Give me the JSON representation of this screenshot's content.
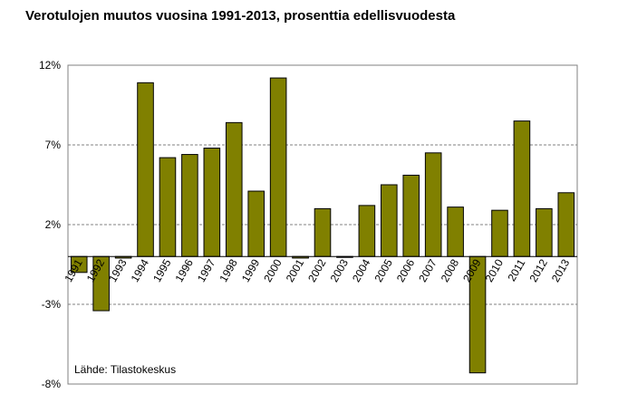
{
  "chart_data": {
    "type": "bar",
    "title": "Verotulojen muutos vuosina 1991-2013, prosenttia edellisvuodesta",
    "categories": [
      "1991",
      "1992",
      "1993",
      "1994",
      "1995",
      "1996",
      "1997",
      "1998",
      "1999",
      "2000",
      "2001",
      "2002",
      "2003",
      "2004",
      "2005",
      "2006",
      "2007",
      "2008",
      "2009",
      "2010",
      "2011",
      "2012",
      "2013"
    ],
    "values": [
      -1.0,
      -3.4,
      -0.1,
      10.9,
      6.2,
      6.4,
      6.8,
      8.4,
      4.1,
      11.2,
      -0.1,
      3.0,
      0.0,
      3.2,
      4.5,
      5.1,
      6.5,
      3.1,
      -7.3,
      2.9,
      8.5,
      3.0,
      4.0
    ],
    "ylim": [
      -8,
      12
    ],
    "yticks": [
      12,
      7,
      2,
      -3,
      -8
    ],
    "ytick_labels": [
      "12%",
      "7%",
      "2%",
      "-3%",
      "-8%"
    ],
    "grid": true,
    "bar_color": "#808000",
    "source_note": "Lähde: Tilastokeskus"
  }
}
